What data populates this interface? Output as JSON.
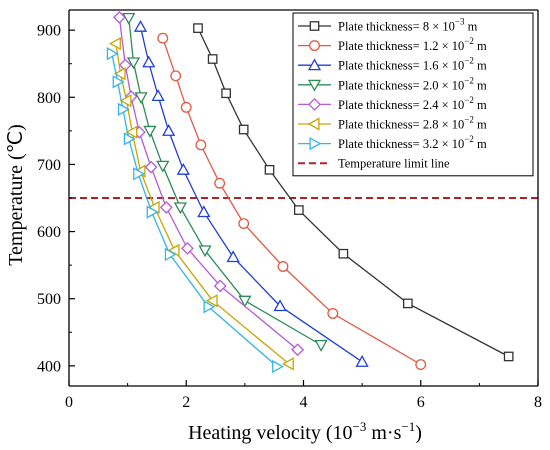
{
  "chart_data": {
    "type": "line",
    "xlabel": "Heating velocity (10",
    "xlabel_exp": "−3",
    "xlabel_unit": " m·s",
    "xlabel_unit_exp": "−1",
    "xlabel_close": ")",
    "ylabel": "Temperature (℃)",
    "xlim": [
      0,
      8
    ],
    "ylim": [
      370,
      930
    ],
    "xticks": [
      0,
      2,
      4,
      6,
      8
    ],
    "yticks": [
      400,
      500,
      600,
      700,
      800,
      900
    ],
    "legend_position": "top-right",
    "limit_line": {
      "name": "Temperature limit line",
      "y": 650,
      "color": "#b22222"
    },
    "series": [
      {
        "name": "Plate thickness= 8 × 10",
        "exp": "−3",
        "unit": " m",
        "marker": "square",
        "color": "#333333",
        "points": [
          [
            2.2,
            903
          ],
          [
            2.45,
            857
          ],
          [
            2.68,
            806
          ],
          [
            2.98,
            752
          ],
          [
            3.42,
            692
          ],
          [
            3.92,
            632
          ],
          [
            4.68,
            567
          ],
          [
            5.78,
            493
          ],
          [
            7.5,
            414
          ]
        ]
      },
      {
        "name": "Plate thickness= 1.2 × 10",
        "exp": "−2",
        "unit": " m",
        "marker": "circle",
        "color": "#e05a44",
        "points": [
          [
            1.6,
            888
          ],
          [
            1.82,
            832
          ],
          [
            2.0,
            785
          ],
          [
            2.25,
            729
          ],
          [
            2.57,
            672
          ],
          [
            2.98,
            612
          ],
          [
            3.65,
            548
          ],
          [
            4.5,
            478
          ],
          [
            6.0,
            402
          ]
        ]
      },
      {
        "name": "Plate thickness= 1.6 × 10",
        "exp": "−2",
        "unit": " m",
        "marker": "triangle-up",
        "color": "#1f3fd6",
        "points": [
          [
            1.22,
            905
          ],
          [
            1.36,
            852
          ],
          [
            1.52,
            802
          ],
          [
            1.7,
            750
          ],
          [
            1.95,
            692
          ],
          [
            2.3,
            629
          ],
          [
            2.8,
            562
          ],
          [
            3.6,
            489
          ],
          [
            5.0,
            406
          ]
        ]
      },
      {
        "name": "Plate thickness= 2.0 × 10",
        "exp": "−2",
        "unit": " m",
        "marker": "triangle-down",
        "color": "#2e8b57",
        "points": [
          [
            1.02,
            918
          ],
          [
            1.1,
            852
          ],
          [
            1.23,
            800
          ],
          [
            1.38,
            750
          ],
          [
            1.6,
            698
          ],
          [
            1.9,
            636
          ],
          [
            2.32,
            572
          ],
          [
            3.0,
            497
          ],
          [
            4.3,
            431
          ]
        ]
      },
      {
        "name": "Plate thickness= 2.4 × 10",
        "exp": "−2",
        "unit": " m",
        "marker": "diamond",
        "color": "#b25bd6",
        "points": [
          [
            0.86,
            919
          ],
          [
            0.96,
            848
          ],
          [
            1.06,
            801
          ],
          [
            1.2,
            748
          ],
          [
            1.4,
            696
          ],
          [
            1.66,
            636
          ],
          [
            2.02,
            575
          ],
          [
            2.58,
            519
          ],
          [
            3.9,
            424
          ]
        ]
      },
      {
        "name": "Plate thickness= 2.8 × 10",
        "exp": "−2",
        "unit": " m",
        "marker": "triangle-left",
        "color": "#c9a400",
        "points": [
          [
            0.8,
            880
          ],
          [
            0.88,
            835
          ],
          [
            0.98,
            795
          ],
          [
            1.08,
            748
          ],
          [
            1.22,
            690
          ],
          [
            1.46,
            636
          ],
          [
            1.8,
            572
          ],
          [
            2.45,
            497
          ],
          [
            3.75,
            403
          ]
        ]
      },
      {
        "name": "Plate thickness= 3.2 × 10",
        "exp": "−2",
        "unit": " m",
        "marker": "triangle-right",
        "color": "#33b5e5",
        "points": [
          [
            0.73,
            865
          ],
          [
            0.83,
            823
          ],
          [
            0.92,
            782
          ],
          [
            1.02,
            738
          ],
          [
            1.18,
            686
          ],
          [
            1.41,
            629
          ],
          [
            1.72,
            566
          ],
          [
            2.38,
            488
          ],
          [
            3.55,
            399
          ]
        ]
      }
    ]
  }
}
